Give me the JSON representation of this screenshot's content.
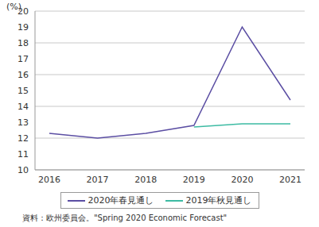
{
  "chart_data": {
    "type": "line",
    "y_label": "(%)",
    "source": "資料：欧州委員会。\"Spring 2020 Economic Forecast\"",
    "categories": [
      "2016",
      "2017",
      "2018",
      "2019",
      "2020",
      "2021"
    ],
    "series": [
      {
        "name": "2020年春見通し",
        "color": "#5b4ea3",
        "values": [
          12.3,
          12.0,
          12.3,
          12.8,
          19.0,
          14.4
        ]
      },
      {
        "name": "2019年秋見通し",
        "color": "#3dbba3",
        "values": [
          null,
          null,
          null,
          12.7,
          12.9,
          12.9
        ]
      }
    ],
    "ylim": [
      10,
      20
    ],
    "yticks": [
      10,
      11,
      12,
      13,
      14,
      15,
      16,
      17,
      18,
      19,
      20
    ],
    "grid": true
  }
}
